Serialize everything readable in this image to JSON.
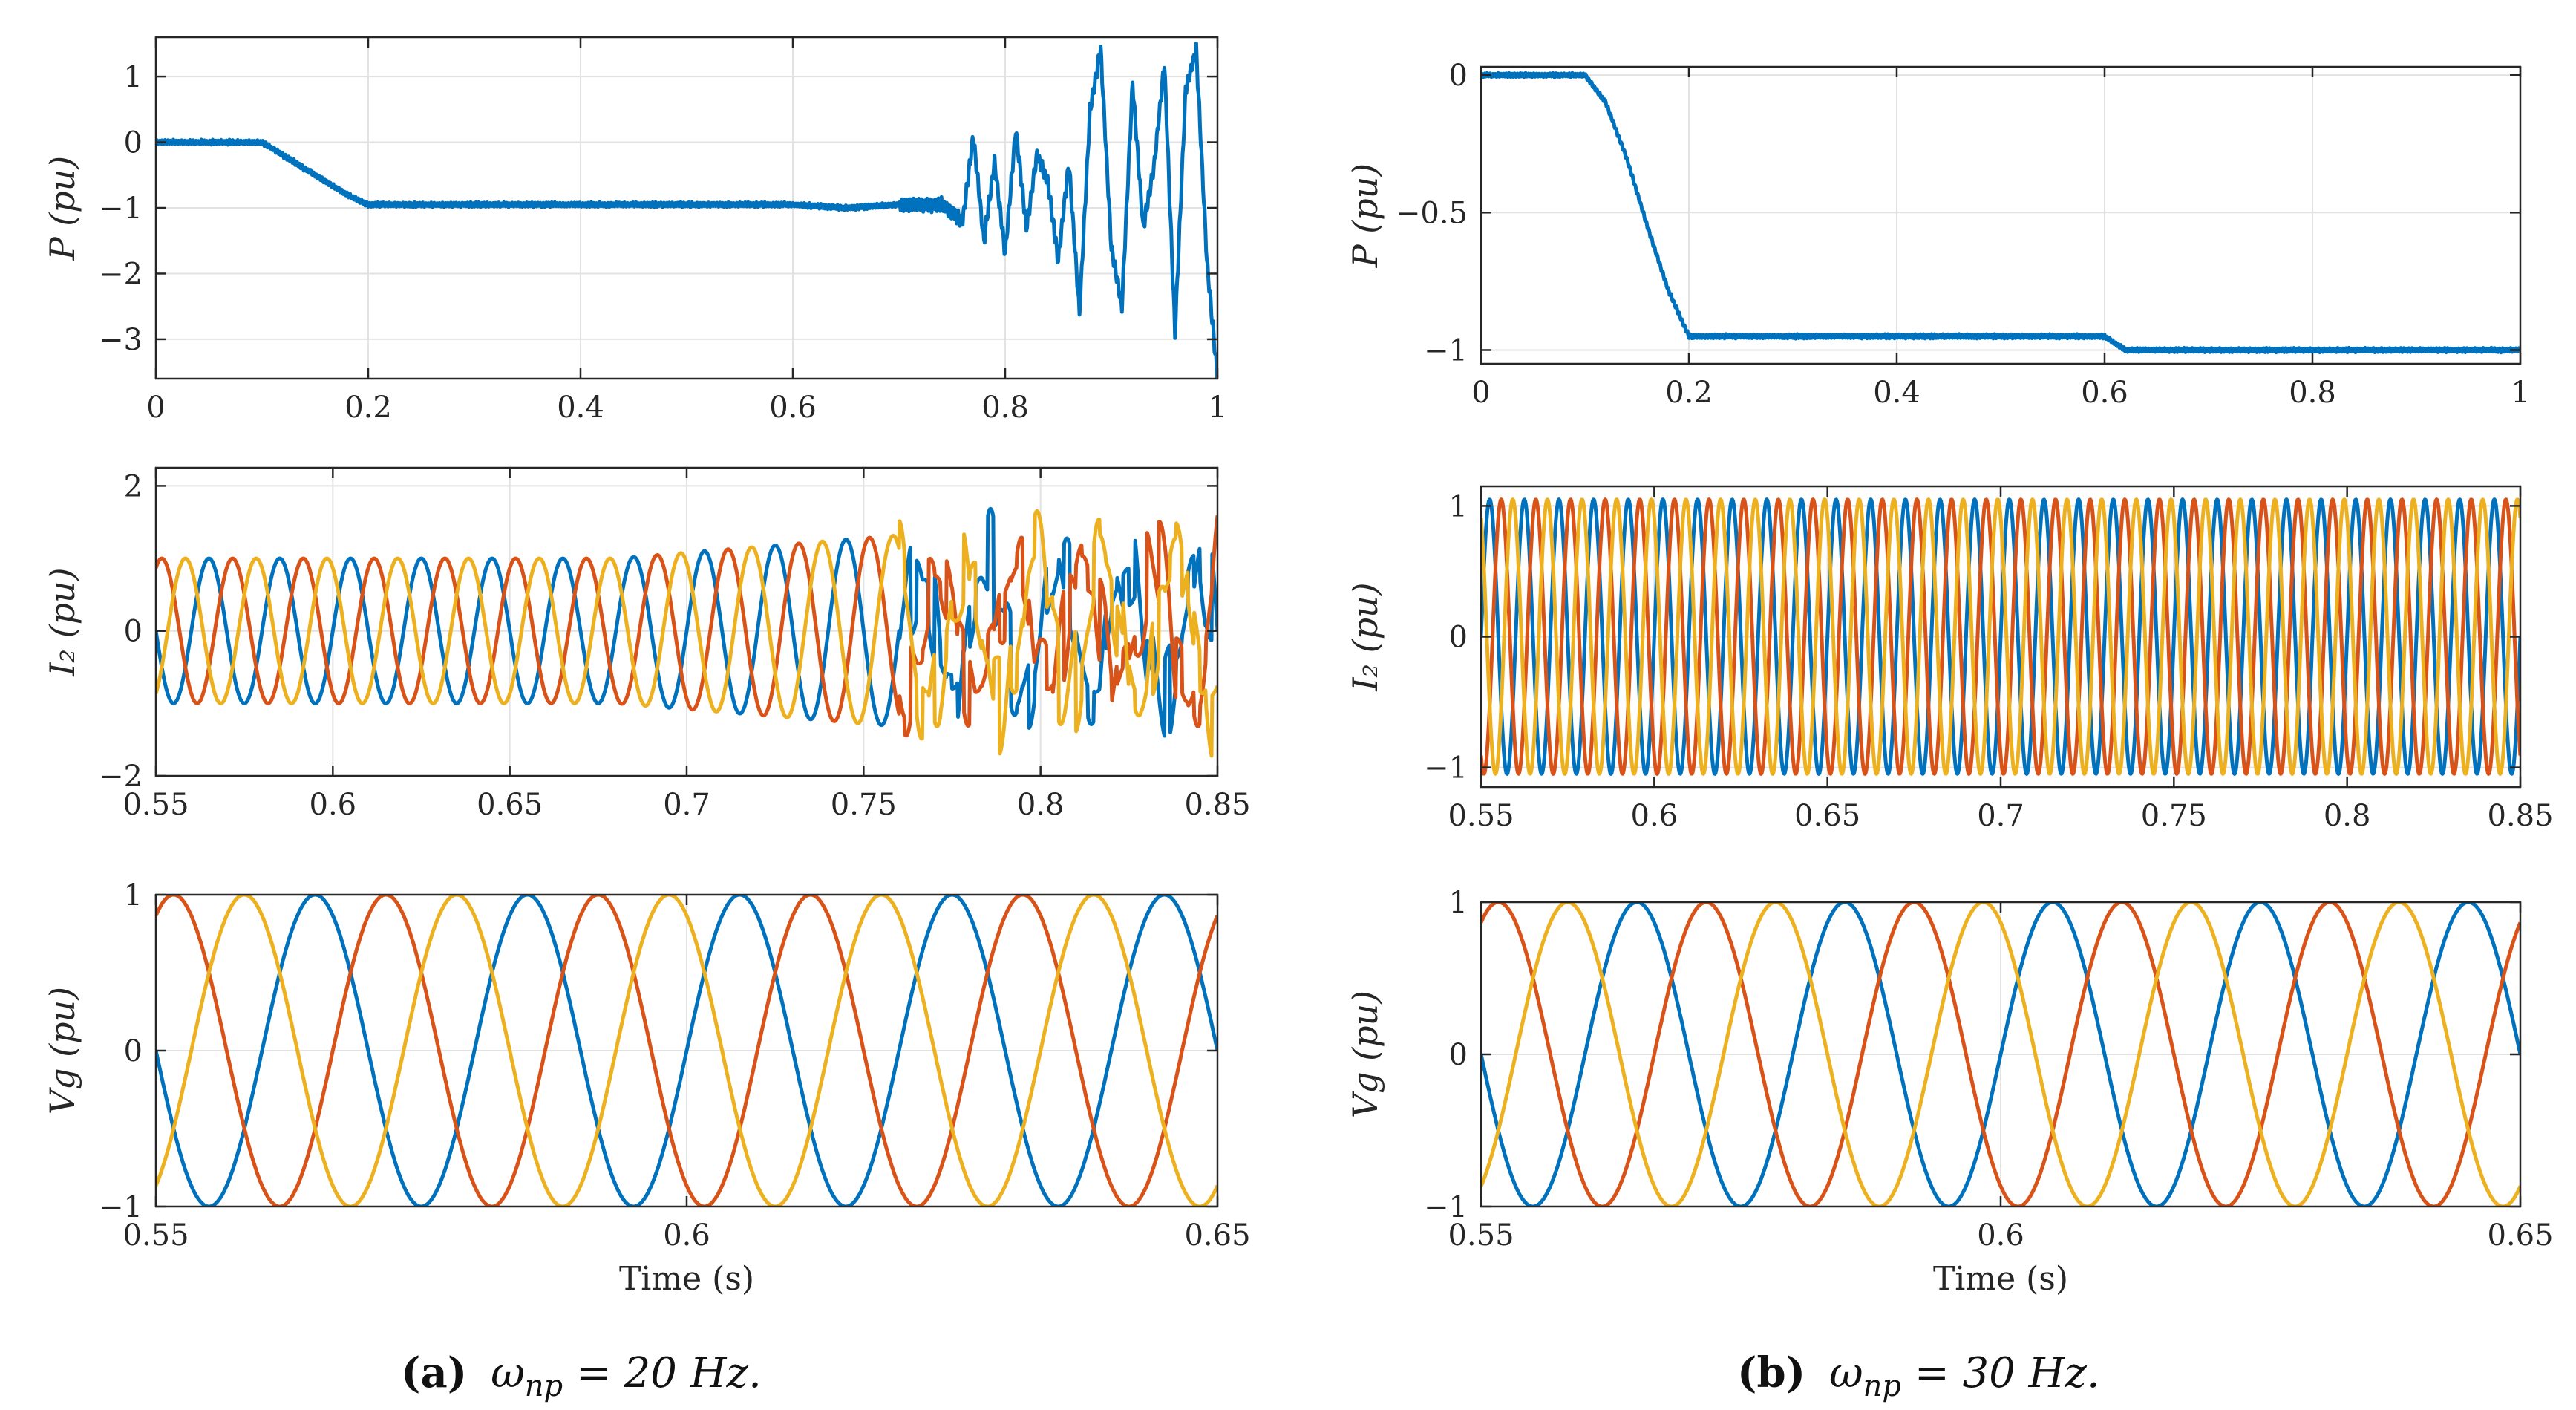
{
  "colors": {
    "blue": "#0072BD",
    "orange": "#D95319",
    "yellow": "#EDB120",
    "axis": "#262626",
    "grid": "#e2e2e2"
  },
  "chart_data": [
    {
      "panel_id": "a-P",
      "type": "line",
      "ylabel_var": "P",
      "ylabel_unit": "(pu)",
      "xlabel": "",
      "xlim": [
        0,
        1
      ],
      "ylim": [
        -3.6,
        1.6
      ],
      "xticks": [
        0,
        0.2,
        0.4,
        0.6,
        0.8,
        1
      ],
      "xtick_labels": [
        "0",
        "0.2",
        "0.4",
        "0.6",
        "0.8",
        "1"
      ],
      "yticks": [
        1,
        0,
        -1,
        -2,
        -3
      ],
      "ytick_labels": [
        "1",
        "0",
        "−1",
        "−2",
        "−3"
      ],
      "series": [
        {
          "name": "P",
          "color": "#0072BD",
          "points": [
            [
              0,
              0
            ],
            [
              0.1,
              0
            ],
            [
              0.12,
              -0.2
            ],
            [
              0.15,
              -0.5
            ],
            [
              0.18,
              -0.8
            ],
            [
              0.2,
              -0.95
            ],
            [
              0.3,
              -0.95
            ],
            [
              0.4,
              -0.95
            ],
            [
              0.5,
              -0.95
            ],
            [
              0.6,
              -0.95
            ],
            [
              0.65,
              -1.0
            ],
            [
              0.7,
              -0.95
            ],
            [
              0.74,
              -0.95
            ],
            [
              0.76,
              -1.2
            ],
            [
              0.77,
              0.1
            ],
            [
              0.78,
              -1.5
            ],
            [
              0.79,
              -0.3
            ],
            [
              0.8,
              -1.7
            ],
            [
              0.81,
              0.2
            ],
            [
              0.82,
              -1.3
            ],
            [
              0.83,
              -0.2
            ],
            [
              0.84,
              -0.6
            ],
            [
              0.85,
              -1.8
            ],
            [
              0.86,
              -0.3
            ],
            [
              0.87,
              -2.6
            ],
            [
              0.88,
              0.5
            ],
            [
              0.89,
              1.4
            ],
            [
              0.9,
              -1.6
            ],
            [
              0.91,
              -2.5
            ],
            [
              0.92,
              0.9
            ],
            [
              0.93,
              -1.3
            ],
            [
              0.94,
              -0.4
            ],
            [
              0.95,
              1.2
            ],
            [
              0.96,
              -2.9
            ],
            [
              0.97,
              0.8
            ],
            [
              0.98,
              1.4
            ],
            [
              0.99,
              -1.8
            ],
            [
              1.0,
              -3.6
            ]
          ]
        }
      ]
    },
    {
      "panel_id": "a-I2",
      "type": "line",
      "ylabel_var": "I₂",
      "ylabel_unit": "(pu)",
      "xlabel": "",
      "xlim": [
        0.55,
        0.85
      ],
      "ylim": [
        -2,
        2.25
      ],
      "xticks": [
        0.55,
        0.6,
        0.65,
        0.7,
        0.75,
        0.8,
        0.85
      ],
      "xtick_labels": [
        "0.55",
        "0.6",
        "0.65",
        "0.7",
        "0.75",
        "0.8",
        "0.85"
      ],
      "yticks": [
        2,
        0,
        -2
      ],
      "ytick_labels": [
        "2",
        "0",
        "−2"
      ],
      "signal": {
        "kind": "three-phase",
        "frequency_hz": 50,
        "amplitude": 1.0,
        "growth_after": 0.68,
        "unstable_after": 0.76,
        "seed": 3
      },
      "series": [
        {
          "name": "phase a",
          "color": "#0072BD"
        },
        {
          "name": "phase b",
          "color": "#D95319"
        },
        {
          "name": "phase c",
          "color": "#EDB120"
        }
      ]
    },
    {
      "panel_id": "a-Vg",
      "type": "line",
      "ylabel_var": "Vg",
      "ylabel_unit": "(pu)",
      "xlabel": "Time (s)",
      "xlim": [
        0.55,
        0.65
      ],
      "ylim": [
        -1,
        1
      ],
      "xticks": [
        0.55,
        0.6,
        0.65
      ],
      "xtick_labels": [
        "0.55",
        "0.6",
        "0.65"
      ],
      "yticks": [
        1,
        0,
        -1
      ],
      "ytick_labels": [
        "1",
        "0",
        "−1"
      ],
      "signal": {
        "kind": "three-phase",
        "frequency_hz": 50,
        "amplitude": 1.0
      },
      "series": [
        {
          "name": "phase a",
          "color": "#0072BD"
        },
        {
          "name": "phase b",
          "color": "#D95319"
        },
        {
          "name": "phase c",
          "color": "#EDB120"
        }
      ]
    },
    {
      "panel_id": "b-P",
      "type": "line",
      "ylabel_var": "P",
      "ylabel_unit": "(pu)",
      "xlabel": "",
      "xlim": [
        0,
        1
      ],
      "ylim": [
        -1.05,
        0.03
      ],
      "xticks": [
        0,
        0.2,
        0.4,
        0.6,
        0.8,
        1
      ],
      "xtick_labels": [
        "0",
        "0.2",
        "0.4",
        "0.6",
        "0.8",
        "1"
      ],
      "yticks": [
        0,
        -0.5,
        -1
      ],
      "ytick_labels": [
        "0",
        "−0.5",
        "−1"
      ],
      "series": [
        {
          "name": "P",
          "color": "#0072BD",
          "points": [
            [
              0,
              0
            ],
            [
              0.1,
              0
            ],
            [
              0.12,
              -0.1
            ],
            [
              0.14,
              -0.3
            ],
            [
              0.16,
              -0.55
            ],
            [
              0.18,
              -0.78
            ],
            [
              0.2,
              -0.95
            ],
            [
              0.3,
              -0.95
            ],
            [
              0.4,
              -0.95
            ],
            [
              0.5,
              -0.95
            ],
            [
              0.6,
              -0.95
            ],
            [
              0.62,
              -1.0
            ],
            [
              0.7,
              -1.0
            ],
            [
              0.8,
              -1.0
            ],
            [
              0.9,
              -1.0
            ],
            [
              1.0,
              -1.0
            ]
          ]
        }
      ]
    },
    {
      "panel_id": "b-I2",
      "type": "line",
      "ylabel_var": "I₂",
      "ylabel_unit": "(pu)",
      "xlabel": "",
      "xlim": [
        0.55,
        0.85
      ],
      "ylim": [
        -1.15,
        1.15
      ],
      "xticks": [
        0.55,
        0.6,
        0.65,
        0.7,
        0.75,
        0.8,
        0.85
      ],
      "xtick_labels": [
        "0.55",
        "0.6",
        "0.65",
        "0.7",
        "0.75",
        "0.8",
        "0.85"
      ],
      "yticks": [
        1,
        0,
        -1
      ],
      "ytick_labels": [
        "1",
        "0",
        "−1"
      ],
      "signal": {
        "kind": "three-phase",
        "frequency_hz": 100,
        "amplitude": 1.05
      },
      "series": [
        {
          "name": "phase a",
          "color": "#0072BD"
        },
        {
          "name": "phase b",
          "color": "#D95319"
        },
        {
          "name": "phase c",
          "color": "#EDB120"
        }
      ]
    },
    {
      "panel_id": "b-Vg",
      "type": "line",
      "ylabel_var": "Vg",
      "ylabel_unit": "(pu)",
      "xlabel": "Time (s)",
      "xlim": [
        0.55,
        0.65
      ],
      "ylim": [
        -1,
        1
      ],
      "xticks": [
        0.55,
        0.6,
        0.65
      ],
      "xtick_labels": [
        "0.55",
        "0.6",
        "0.65"
      ],
      "yticks": [
        1,
        0,
        -1
      ],
      "ytick_labels": [
        "1",
        "0",
        "−1"
      ],
      "signal": {
        "kind": "three-phase",
        "frequency_hz": 50,
        "amplitude": 1.0
      },
      "series": [
        {
          "name": "phase a",
          "color": "#0072BD"
        },
        {
          "name": "phase b",
          "color": "#D95319"
        },
        {
          "name": "phase c",
          "color": "#EDB120"
        }
      ]
    }
  ],
  "captions": [
    {
      "tag": "(a)",
      "text": "ω",
      "sub": "np",
      "rest": " = 20 Hz."
    },
    {
      "tag": "(b)",
      "text": "ω",
      "sub": "np",
      "rest": " = 30 Hz."
    }
  ]
}
